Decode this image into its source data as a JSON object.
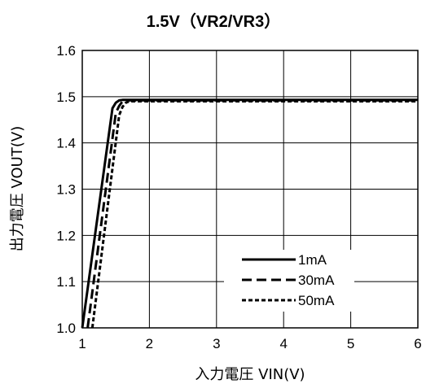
{
  "chart_data": {
    "type": "line",
    "title": "1.5V（VR2/VR3）",
    "xlabel": "入力電圧 VIN(V)",
    "ylabel": "出力電圧 VOUT(V)",
    "xlim": [
      1,
      6
    ],
    "ylim": [
      1.0,
      1.6
    ],
    "x_ticks": [
      "1",
      "2",
      "3",
      "4",
      "5",
      "6"
    ],
    "y_ticks": [
      "1.0",
      "1.1",
      "1.2",
      "1.3",
      "1.4",
      "1.5",
      "1.6"
    ],
    "grid": true,
    "legend_position": "bottom-right",
    "series": [
      {
        "name": "1mA",
        "style": "solid",
        "x": [
          1.0,
          1.45,
          1.5,
          1.55,
          1.6,
          1.7,
          6.0
        ],
        "y": [
          1.0,
          1.475,
          1.487,
          1.492,
          1.493,
          1.493,
          1.493
        ]
      },
      {
        "name": "30mA",
        "style": "dashed",
        "x": [
          1.08,
          1.5,
          1.55,
          1.6,
          1.65,
          1.75,
          6.0
        ],
        "y": [
          1.0,
          1.465,
          1.48,
          1.49,
          1.492,
          1.492,
          1.492
        ]
      },
      {
        "name": "50mA",
        "style": "dotted",
        "x": [
          1.15,
          1.55,
          1.6,
          1.65,
          1.7,
          1.8,
          6.0
        ],
        "y": [
          1.0,
          1.46,
          1.478,
          1.487,
          1.49,
          1.49,
          1.49
        ]
      }
    ],
    "colors": {
      "line": "#000000",
      "grid": "#000000",
      "background": "#ffffff"
    }
  }
}
